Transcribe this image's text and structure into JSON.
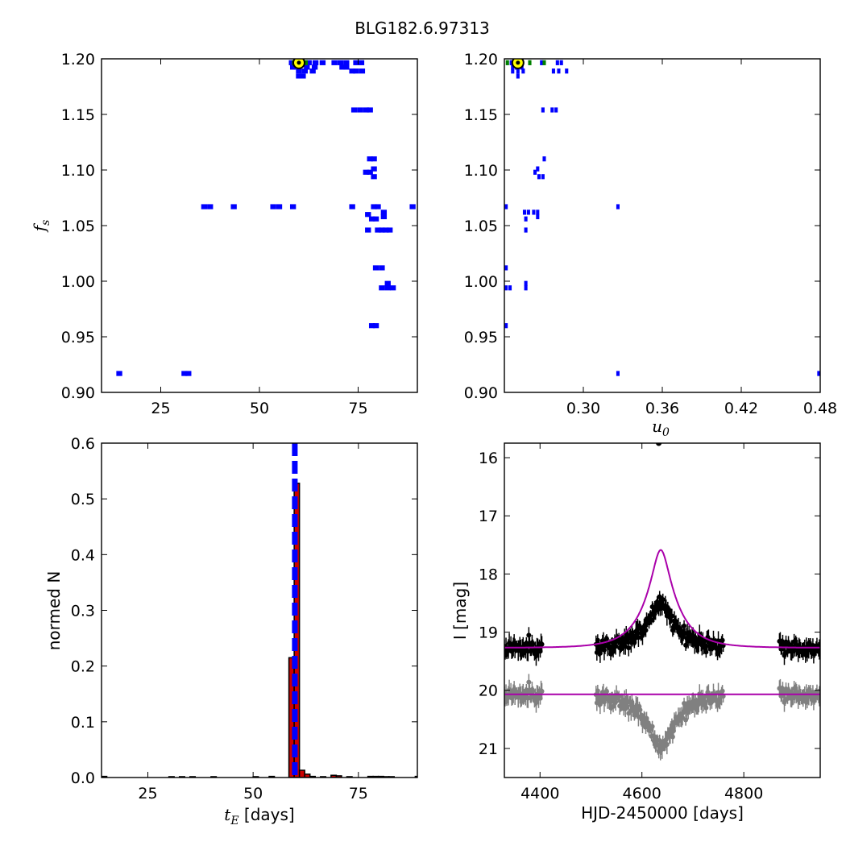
{
  "figure": {
    "title": "BLG182.6.97313"
  },
  "chart_data": [
    {
      "id": "fs-vs-tE",
      "type": "heatmap",
      "xlabel": "",
      "ylabel": "f_s",
      "ylabel_parts": {
        "base": "f",
        "sub": "s"
      },
      "xlim": [
        10,
        90
      ],
      "ylim": [
        0.9,
        1.2
      ],
      "xticks": [
        25,
        50,
        75
      ],
      "yticks": [
        0.9,
        0.95,
        1.0,
        1.05,
        1.1,
        1.15,
        1.2
      ],
      "ytick_decimals": 2,
      "cell": {
        "dx": 1.5,
        "dy": 0.0045
      },
      "colors": {
        "cells": "#0000ff",
        "best_cells": "#008000",
        "best_marker_fill": "#ffff00",
        "best_marker_edge": "#000000"
      },
      "cells_blue": [
        [
          58.2,
          1.1965
        ],
        [
          62.5,
          1.1965
        ],
        [
          64.2,
          1.1965
        ],
        [
          66.0,
          1.1965
        ],
        [
          69.0,
          1.1965
        ],
        [
          70.5,
          1.1965
        ],
        [
          72.0,
          1.1965
        ],
        [
          74.5,
          1.1965
        ],
        [
          75.8,
          1.1965
        ],
        [
          58.5,
          1.1925
        ],
        [
          62.0,
          1.1925
        ],
        [
          64.0,
          1.1925
        ],
        [
          71.0,
          1.1925
        ],
        [
          72.0,
          1.1925
        ],
        [
          60.0,
          1.189
        ],
        [
          61.5,
          1.189
        ],
        [
          63.5,
          1.189
        ],
        [
          73.5,
          1.189
        ],
        [
          74.5,
          1.189
        ],
        [
          76.0,
          1.189
        ],
        [
          60.0,
          1.1845
        ],
        [
          61.0,
          1.1845
        ],
        [
          74.0,
          1.154
        ],
        [
          75.5,
          1.154
        ],
        [
          77.0,
          1.154
        ],
        [
          78.0,
          1.154
        ],
        [
          78.0,
          1.11
        ],
        [
          79.0,
          1.11
        ],
        [
          79.0,
          1.101
        ],
        [
          77.0,
          1.098
        ],
        [
          78.0,
          1.098
        ],
        [
          79.0,
          1.094
        ],
        [
          36.0,
          1.067
        ],
        [
          37.5,
          1.067
        ],
        [
          43.5,
          1.067
        ],
        [
          53.5,
          1.067
        ],
        [
          55.0,
          1.067
        ],
        [
          58.5,
          1.067
        ],
        [
          73.5,
          1.067
        ],
        [
          79.0,
          1.067
        ],
        [
          80.0,
          1.067
        ],
        [
          88.8,
          1.067
        ],
        [
          81.5,
          1.062
        ],
        [
          77.5,
          1.06
        ],
        [
          78.5,
          1.056
        ],
        [
          79.5,
          1.056
        ],
        [
          81.5,
          1.058
        ],
        [
          77.5,
          1.046
        ],
        [
          80.0,
          1.046
        ],
        [
          81.0,
          1.046
        ],
        [
          82.0,
          1.046
        ],
        [
          83.0,
          1.046
        ],
        [
          79.5,
          1.012
        ],
        [
          81.0,
          1.012
        ],
        [
          82.5,
          0.998
        ],
        [
          81.0,
          0.994
        ],
        [
          82.5,
          0.994
        ],
        [
          83.8,
          0.994
        ],
        [
          78.5,
          0.96
        ],
        [
          79.5,
          0.96
        ],
        [
          14.5,
          0.917
        ],
        [
          31.0,
          0.917
        ],
        [
          32.0,
          0.917
        ]
      ],
      "cells_green": [
        [
          59.0,
          1.1965
        ],
        [
          61.5,
          1.1965
        ]
      ],
      "best_fit": {
        "x": 60.0,
        "y": 1.1965
      }
    },
    {
      "id": "fs-vs-u0",
      "type": "heatmap",
      "xlabel": "u_0",
      "xlabel_parts": {
        "base": "u",
        "sub": "0"
      },
      "ylabel": "",
      "xlim": [
        0.24,
        0.48
      ],
      "ylim": [
        0.9,
        1.2
      ],
      "xticks": [
        0.3,
        0.36,
        0.42,
        0.48
      ],
      "yticks": [
        0.9,
        0.95,
        1.0,
        1.05,
        1.1,
        1.15,
        1.2
      ],
      "xtick_decimals": 2,
      "ytick_decimals": 2,
      "cell": {
        "dx": 0.0025,
        "dy": 0.0045
      },
      "colors": {
        "cells": "#0000ff",
        "best_cells": "#008000",
        "best_marker_fill": "#ffff00",
        "best_marker_edge": "#000000"
      },
      "cells_blue": [
        [
          0.2453,
          1.1965
        ],
        [
          0.2483,
          1.1965
        ],
        [
          0.2513,
          1.1965
        ],
        [
          0.2683,
          1.1965
        ],
        [
          0.2803,
          1.1965
        ],
        [
          0.2833,
          1.1965
        ],
        [
          0.2463,
          1.1925
        ],
        [
          0.2493,
          1.1925
        ],
        [
          0.2533,
          1.1925
        ],
        [
          0.2463,
          1.189
        ],
        [
          0.2503,
          1.189
        ],
        [
          0.2543,
          1.189
        ],
        [
          0.2773,
          1.189
        ],
        [
          0.2813,
          1.189
        ],
        [
          0.2873,
          1.189
        ],
        [
          0.2503,
          1.1845
        ],
        [
          0.2693,
          1.154
        ],
        [
          0.2763,
          1.154
        ],
        [
          0.2793,
          1.154
        ],
        [
          0.2703,
          1.11
        ],
        [
          0.2653,
          1.101
        ],
        [
          0.2633,
          1.098
        ],
        [
          0.2663,
          1.094
        ],
        [
          0.2693,
          1.094
        ],
        [
          0.2413,
          1.067
        ],
        [
          0.2583,
          1.062
        ],
        [
          0.2623,
          1.062
        ],
        [
          0.2653,
          1.062
        ],
        [
          0.2553,
          1.062
        ],
        [
          0.2653,
          1.058
        ],
        [
          0.2563,
          1.056
        ],
        [
          0.2563,
          1.046
        ],
        [
          0.3263,
          1.067
        ],
        [
          0.2413,
          1.012
        ],
        [
          0.2413,
          0.994
        ],
        [
          0.2443,
          0.994
        ],
        [
          0.2563,
          0.998
        ],
        [
          0.2563,
          0.994
        ],
        [
          0.2413,
          0.96
        ],
        [
          0.3263,
          0.917
        ],
        [
          0.479,
          0.917
        ]
      ],
      "cells_green": [
        [
          0.2423,
          1.1965
        ],
        [
          0.2593,
          1.1965
        ],
        [
          0.2703,
          1.1965
        ]
      ],
      "best_fit": {
        "x": 0.2503,
        "y": 1.1965
      }
    },
    {
      "id": "tE-histogram",
      "type": "bar",
      "xlabel": "t_E [days]",
      "xlabel_parts": {
        "base": "t",
        "sub": "E",
        "suffix": " [days]"
      },
      "ylabel": "normed N",
      "xlim": [
        14,
        89
      ],
      "ylim": [
        0.0,
        0.6
      ],
      "xticks": [
        25,
        50,
        75
      ],
      "yticks": [
        0.0,
        0.1,
        0.2,
        0.3,
        0.4,
        0.5,
        0.6
      ],
      "ytick_decimals": 1,
      "bin_width": 1.25,
      "bins": [
        [
          14.0,
          0.002
        ],
        [
          30.0,
          0.0015
        ],
        [
          32.5,
          0.0015
        ],
        [
          35.0,
          0.0015
        ],
        [
          40.0,
          0.0015
        ],
        [
          50.0,
          0.0015
        ],
        [
          53.8,
          0.002
        ],
        [
          58.5,
          0.215
        ],
        [
          59.75,
          0.528
        ],
        [
          61.0,
          0.013
        ],
        [
          62.25,
          0.006
        ],
        [
          63.5,
          0.002
        ],
        [
          66.0,
          0.0015
        ],
        [
          68.5,
          0.004
        ],
        [
          69.75,
          0.003
        ],
        [
          72.25,
          0.0015
        ],
        [
          77.25,
          0.002
        ],
        [
          78.5,
          0.002
        ],
        [
          79.75,
          0.002
        ],
        [
          81.0,
          0.0015
        ],
        [
          82.25,
          0.0015
        ],
        [
          88.5,
          0.002
        ]
      ],
      "best_fit_line": 59.9,
      "colors": {
        "bars": "#cc0000",
        "bar_edge": "#000000",
        "best_fit_line": "#0000ff"
      }
    },
    {
      "id": "light-curve",
      "type": "scatter",
      "xlabel": "HJD-2450000 [days]",
      "ylabel": "I [mag]",
      "xlim": [
        4330,
        4950
      ],
      "ylim": [
        21.5,
        15.75
      ],
      "inverted_y": true,
      "xticks": [
        4400,
        4600,
        4800
      ],
      "yticks": [
        16,
        17,
        18,
        19,
        20,
        21
      ],
      "model": {
        "t0": 4637,
        "tE": 60,
        "u0": 0.25,
        "fs": 1.2,
        "base_mag": 19.27
      },
      "residual_offset_mag": 0.8,
      "observing_seasons": [
        [
          4330,
          4405
        ],
        [
          4510,
          4760
        ],
        [
          4870,
          4950
        ]
      ],
      "noise_sigma": 0.12,
      "isolated_point": {
        "x": 4633,
        "y": 15.75
      },
      "colors": {
        "data": "#000000",
        "residuals": "#808080",
        "model": "#aa00aa"
      }
    }
  ]
}
